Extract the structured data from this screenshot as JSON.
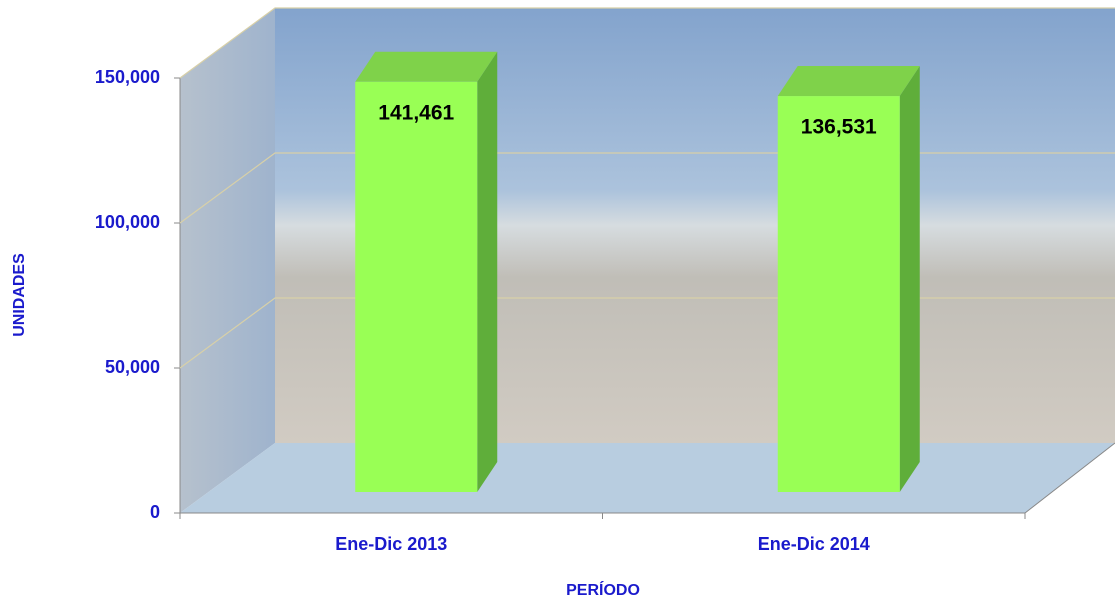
{
  "chart_data": {
    "type": "bar3d",
    "categories": [
      "Ene-Dic 2013",
      "Ene-Dic 2014"
    ],
    "values": [
      141461,
      136531
    ],
    "value_labels": [
      "141,461",
      "136,531"
    ],
    "color": "#99ff55",
    "ylim": [
      0,
      150000
    ],
    "yticks": [
      0,
      {
        "value": 50000,
        "label": "50,000"
      },
      {
        "value": 100000,
        "label": "100,000"
      },
      {
        "value": 150000,
        "label": "150,000"
      }
    ],
    "grid": true,
    "y_label": "UNIDADES",
    "x_label": "PERÍODO"
  }
}
